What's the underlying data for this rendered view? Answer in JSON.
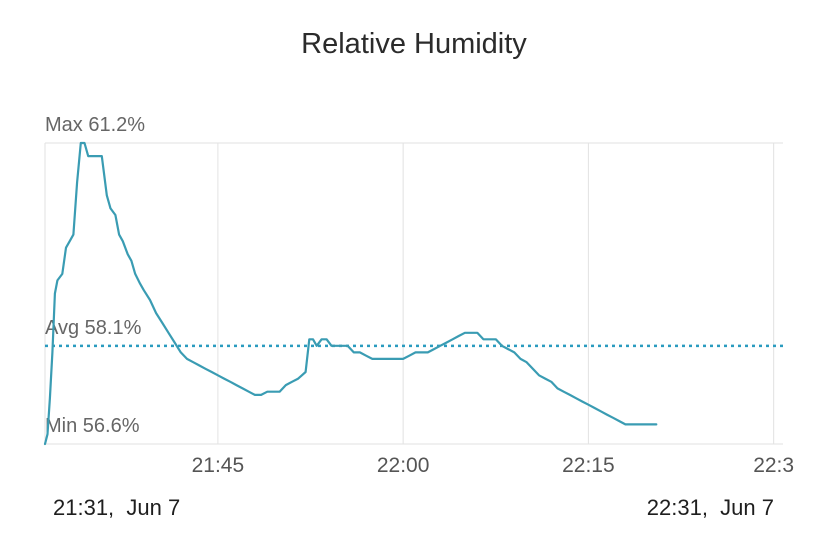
{
  "title": "Relative Humidity",
  "range": {
    "start": "21:31,  Jun 7",
    "end": "22:31,  Jun 7"
  },
  "colors": {
    "line": "#3a9cb3",
    "avg": "#2a9bbf",
    "grid": "#e2e2e2"
  },
  "chart_data": {
    "type": "line",
    "title": "Relative Humidity",
    "xlabel": "",
    "ylabel": "",
    "unit": "%",
    "x_start_min": 1291,
    "x_end_min": 1340.5,
    "ylim": [
      56.6,
      61.2
    ],
    "xticks": [
      {
        "min": 1305,
        "label": "21:45"
      },
      {
        "min": 1320,
        "label": "22:00"
      },
      {
        "min": 1335,
        "label": "22:15"
      },
      {
        "min": 1350,
        "label": "22:3"
      }
    ],
    "stats": [
      {
        "value": 61.2,
        "label": "Max 61.2%"
      },
      {
        "value": 58.1,
        "label": "Avg 58.1%"
      },
      {
        "value": 56.6,
        "label": "Min 56.6%"
      }
    ],
    "avg": 58.1,
    "series": [
      {
        "values": [
          [
            1291.0,
            56.6
          ],
          [
            1291.2,
            56.75
          ],
          [
            1291.4,
            57.3
          ],
          [
            1291.6,
            58.0
          ],
          [
            1291.8,
            58.9
          ],
          [
            1292.0,
            59.1
          ],
          [
            1292.4,
            59.2
          ],
          [
            1292.7,
            59.6
          ],
          [
            1293.0,
            59.7
          ],
          [
            1293.3,
            59.8
          ],
          [
            1293.6,
            60.6
          ],
          [
            1293.9,
            61.2
          ],
          [
            1294.2,
            61.2
          ],
          [
            1294.5,
            61.0
          ],
          [
            1295.0,
            61.0
          ],
          [
            1295.3,
            61.0
          ],
          [
            1295.6,
            61.0
          ],
          [
            1296.0,
            60.4
          ],
          [
            1296.3,
            60.2
          ],
          [
            1296.7,
            60.1
          ],
          [
            1297.0,
            59.8
          ],
          [
            1297.3,
            59.7
          ],
          [
            1297.7,
            59.5
          ],
          [
            1298.0,
            59.4
          ],
          [
            1298.3,
            59.2
          ],
          [
            1298.7,
            59.05
          ],
          [
            1299.0,
            58.95
          ],
          [
            1299.5,
            58.8
          ],
          [
            1300.0,
            58.6
          ],
          [
            1300.5,
            58.45
          ],
          [
            1301.0,
            58.3
          ],
          [
            1301.5,
            58.15
          ],
          [
            1302.0,
            58.0
          ],
          [
            1302.5,
            57.9
          ],
          [
            1303.0,
            57.85
          ],
          [
            1303.5,
            57.8
          ],
          [
            1304.0,
            57.75
          ],
          [
            1304.5,
            57.7
          ],
          [
            1305.0,
            57.65
          ],
          [
            1305.5,
            57.6
          ],
          [
            1306.0,
            57.55
          ],
          [
            1306.5,
            57.5
          ],
          [
            1307.0,
            57.45
          ],
          [
            1307.5,
            57.4
          ],
          [
            1308.0,
            57.35
          ],
          [
            1308.5,
            57.35
          ],
          [
            1309.0,
            57.4
          ],
          [
            1310.0,
            57.4
          ],
          [
            1310.5,
            57.5
          ],
          [
            1311.0,
            57.55
          ],
          [
            1311.5,
            57.6
          ],
          [
            1311.8,
            57.65
          ],
          [
            1312.1,
            57.7
          ],
          [
            1312.4,
            58.2
          ],
          [
            1312.7,
            58.2
          ],
          [
            1313.0,
            58.1
          ],
          [
            1313.4,
            58.2
          ],
          [
            1313.8,
            58.2
          ],
          [
            1314.2,
            58.1
          ],
          [
            1314.6,
            58.1
          ],
          [
            1315.0,
            58.1
          ],
          [
            1315.5,
            58.1
          ],
          [
            1316.0,
            58.0
          ],
          [
            1316.5,
            58.0
          ],
          [
            1317.0,
            57.95
          ],
          [
            1317.5,
            57.9
          ],
          [
            1318.0,
            57.9
          ],
          [
            1319.0,
            57.9
          ],
          [
            1320.0,
            57.9
          ],
          [
            1320.5,
            57.95
          ],
          [
            1321.0,
            58.0
          ],
          [
            1322.0,
            58.0
          ],
          [
            1322.5,
            58.05
          ],
          [
            1323.0,
            58.1
          ],
          [
            1323.5,
            58.15
          ],
          [
            1324.0,
            58.2
          ],
          [
            1324.5,
            58.25
          ],
          [
            1325.0,
            58.3
          ],
          [
            1325.5,
            58.3
          ],
          [
            1326.0,
            58.3
          ],
          [
            1326.5,
            58.2
          ],
          [
            1327.0,
            58.2
          ],
          [
            1327.5,
            58.2
          ],
          [
            1328.0,
            58.1
          ],
          [
            1328.5,
            58.05
          ],
          [
            1329.0,
            58.0
          ],
          [
            1329.5,
            57.9
          ],
          [
            1330.0,
            57.85
          ],
          [
            1330.5,
            57.75
          ],
          [
            1331.0,
            57.65
          ],
          [
            1331.5,
            57.6
          ],
          [
            1332.0,
            57.55
          ],
          [
            1332.5,
            57.45
          ],
          [
            1333.0,
            57.4
          ],
          [
            1333.5,
            57.35
          ],
          [
            1334.0,
            57.3
          ],
          [
            1334.5,
            57.25
          ],
          [
            1335.0,
            57.2
          ],
          [
            1335.5,
            57.15
          ],
          [
            1336.0,
            57.1
          ],
          [
            1336.5,
            57.05
          ],
          [
            1337.0,
            57.0
          ],
          [
            1337.5,
            56.95
          ],
          [
            1338.0,
            56.9
          ],
          [
            1338.5,
            56.9
          ],
          [
            1339.0,
            56.9
          ],
          [
            1340.0,
            56.9
          ],
          [
            1340.5,
            56.9
          ]
        ]
      }
    ]
  }
}
